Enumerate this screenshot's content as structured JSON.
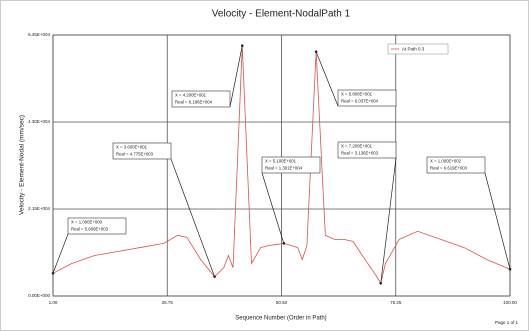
{
  "chart_data": {
    "type": "line",
    "title": "Velocity - Element-NodalPath 1",
    "xlabel": "Sequence Number (Order in Path)",
    "ylabel": "Velocity - Element-Nodal (mm/sec)",
    "footer": "Page 1 of 1",
    "legend_position": "upper right",
    "grid": true,
    "xlim": [
      1,
      100
    ],
    "xticks": [
      {
        "value": 1,
        "label": "1.00"
      },
      {
        "value": 25.75,
        "label": "25.75"
      },
      {
        "value": 50.5,
        "label": "50.50"
      },
      {
        "value": 75.25,
        "label": "75.25"
      },
      {
        "value": 100,
        "label": "100.00"
      }
    ],
    "ylim": [
      0,
      64500
    ],
    "yticks": [
      {
        "value": 0,
        "label": "0.00E+000"
      },
      {
        "value": 21500,
        "label": "2.15E+004"
      },
      {
        "value": 43000,
        "label": "4.30E+004"
      },
      {
        "value": 64500,
        "label": "6.45E+004"
      }
    ],
    "series": [
      {
        "name": "At Path 0.3",
        "color": "#d9534f",
        "x": [
          1,
          5,
          10,
          15,
          20,
          25,
          28,
          30,
          33,
          36,
          38,
          39,
          40,
          42,
          44,
          46,
          48,
          51,
          54,
          55,
          56,
          58,
          60,
          62,
          64,
          66,
          68,
          71,
          72,
          73,
          76,
          80,
          85,
          90,
          95,
          100
        ],
        "values": [
          5609,
          8000,
          10000,
          11000,
          12000,
          13000,
          15000,
          14500,
          9000,
          4775,
          7000,
          10000,
          7000,
          61860,
          8000,
          12000,
          12500,
          13010,
          12000,
          9000,
          12500,
          60370,
          15000,
          14000,
          14000,
          13500,
          10000,
          5000,
          3136,
          8000,
          14000,
          16000,
          14000,
          12000,
          9000,
          6619
        ]
      }
    ],
    "annotations": [
      {
        "x": 1,
        "y": 5609,
        "lines": [
          "X = 1.000E+000",
          "Real = 5.609E+003"
        ]
      },
      {
        "x": 36,
        "y": 4775,
        "lines": [
          "X = 3.600E+001",
          "Real = 4.775E+003"
        ]
      },
      {
        "x": 42,
        "y": 61860,
        "lines": [
          "X = 4.200E+001",
          "Real = 6.186E+004"
        ]
      },
      {
        "x": 51,
        "y": 13010,
        "lines": [
          "X = 5.100E+001",
          "Real = 1.301E+004"
        ]
      },
      {
        "x": 58,
        "y": 60370,
        "lines": [
          "X = 5.800E+001",
          "Real = 6.037E+004"
        ]
      },
      {
        "x": 72,
        "y": 3136,
        "lines": [
          "X = 7.200E+001",
          "Real = 3.136E+003"
        ]
      },
      {
        "x": 100,
        "y": 6619,
        "lines": [
          "X = 1.000E+002",
          "Real = 6.619E+003"
        ]
      }
    ]
  }
}
